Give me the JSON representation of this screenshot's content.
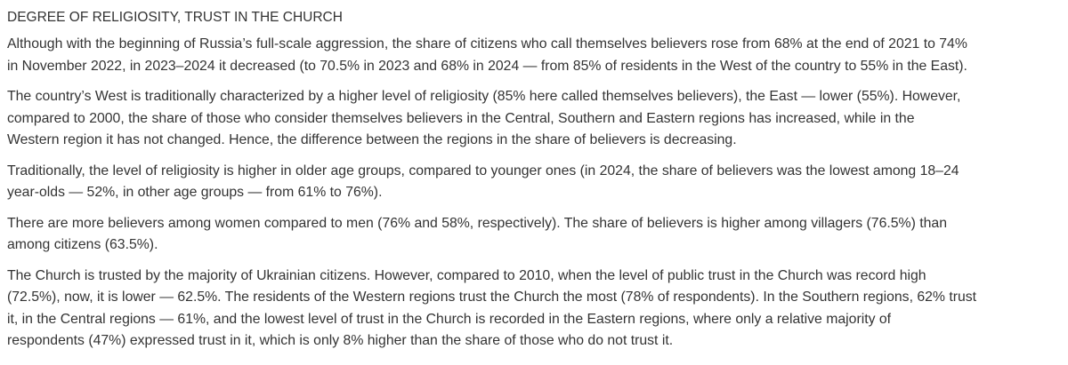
{
  "header": {
    "title": "DEGREE OF RELIGIOSITY, TRUST IN THE CHURCH"
  },
  "paragraphs": [
    [
      "Although with the beginning of Russia’s full-scale aggression, the share of citizens who call themselves believers rose from 68% at the end of 2021 to 74%",
      "in November 2022, in 2023–2024 it decreased (to 70.5% in 2023 and 68% in 2024 — from 85% of residents in the West of the country to 55% in the East)."
    ],
    [
      "The country’s West is traditionally characterized by a higher level of religiosity (85% here called themselves believers), the East — lower (55%). However,",
      "compared to 2000, the share of those who consider themselves believers in the Central, Southern and Eastern regions has increased, while in the",
      "Western region it has not changed. Hence, the difference between the regions in the share of believers is decreasing."
    ],
    [
      "Traditionally, the level of religiosity is higher in older age groups, compared to younger ones (in 2024, the share of believers was the lowest among 18–24",
      "year-olds — 52%, in other age groups — from 61% to 76%)."
    ],
    [
      "There are more believers among women compared to men (76% and 58%, respectively). The share of believers is higher among villagers (76.5%) than",
      "among citizens (63.5%)."
    ],
    [
      "The Church is trusted by the majority of Ukrainian citizens. However, compared to 2010, when the level of public trust in the Church was record high",
      "(72.5%), now, it is lower — 62.5%. The residents of the Western regions trust the Church the most (78% of respondents). In the Southern regions, 62% trust",
      "it, in the Central regions — 61%, and the lowest level of trust in the Church is recorded in the Eastern regions, where only a relative majority of",
      "respondents (47%) expressed trust in it, which is only 8% higher than the share of those who do not trust it."
    ]
  ]
}
